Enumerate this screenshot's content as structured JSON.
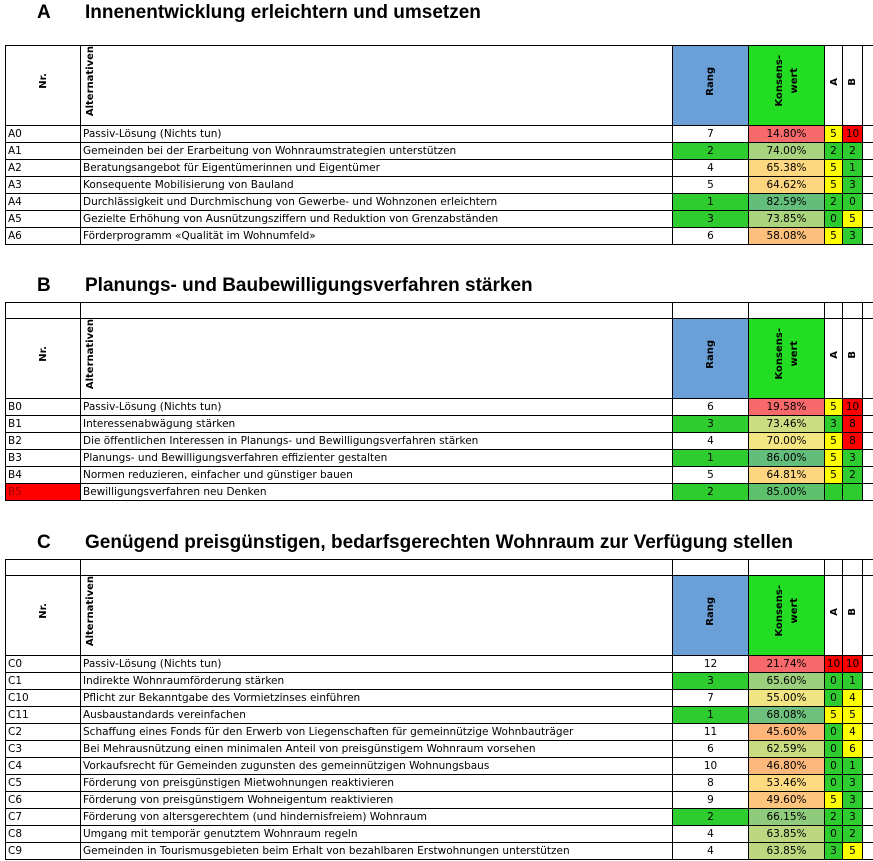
{
  "sections": [
    {
      "letter": "A",
      "title": "Innenentwicklung erleichtern und umsetzen",
      "blank_row": false,
      "headers": {
        "nr": "Nr.",
        "alt": "Alternativen",
        "rang": "Rang",
        "konsens": "Konsens-\nwert",
        "a": "A",
        "b": "B"
      },
      "header_fills": {
        "rang": "#6a9fd8",
        "konsens": "#22dd22"
      },
      "rows": [
        {
          "nr": "A0",
          "text": "Passiv-Lösung (Nichts tun)",
          "rang": 7,
          "konsens": "14.80%",
          "a": 5,
          "b": 10,
          "konsens_fill": "#f8696b",
          "a_fill": "#ffff00",
          "b_fill": "#ff0000"
        },
        {
          "nr": "A1",
          "text": "Gemeinden bei der Erarbeitung von Wohnraumstrategien unterstützen",
          "rang": 2,
          "konsens": "74.00%",
          "a": 2,
          "b": 2,
          "rang_fill": "#2fcc2f",
          "konsens_fill": "#a9d47f",
          "a_fill": "#2fcc2f",
          "b_fill": "#2fcc2f"
        },
        {
          "nr": "A2",
          "text": "Beratungsangebot für Eigentümerinnen und Eigentümer",
          "rang": 4,
          "konsens": "65.38%",
          "a": 5,
          "b": 1,
          "konsens_fill": "#fed880",
          "a_fill": "#ffff00",
          "b_fill": "#2fcc2f"
        },
        {
          "nr": "A3",
          "text": "Konsequente Mobilisierung von Bauland",
          "rang": 5,
          "konsens": "64.62%",
          "a": 5,
          "b": 3,
          "konsens_fill": "#fed680",
          "a_fill": "#ffff00",
          "b_fill": "#2fcc2f"
        },
        {
          "nr": "A4",
          "text": "Durchlässigkeit und Durchmischung von Gewerbe- und Wohnzonen erleichtern",
          "rang": 1,
          "konsens": "82.59%",
          "a": 2,
          "b": 0,
          "rang_fill": "#2fcc2f",
          "konsens_fill": "#63be7b",
          "a_fill": "#2fcc2f",
          "b_fill": "#2fcc2f"
        },
        {
          "nr": "A5",
          "text": "Gezielte Erhöhung von Ausnützungsziffern und Reduktion von Grenzabständen",
          "rang": 3,
          "konsens": "73.85%",
          "a": 0,
          "b": 5,
          "rang_fill": "#2fcc2f",
          "konsens_fill": "#abd47f",
          "a_fill": "#2fcc2f",
          "b_fill": "#ffff00"
        },
        {
          "nr": "A6",
          "text": "Förderprogramm «Qualität im Wohnumfeld»",
          "rang": 6,
          "konsens": "58.08%",
          "a": 5,
          "b": 3,
          "konsens_fill": "#fdc07c",
          "a_fill": "#ffff00",
          "b_fill": "#2fcc2f"
        }
      ]
    },
    {
      "letter": "B",
      "title": "Planungs- und Baubewilligungsverfahren stärken",
      "blank_row": true,
      "headers": {
        "nr": "Nr.",
        "alt": "Alternativen",
        "rang": "Rang",
        "konsens": "Konsens-\nwert",
        "a": "A",
        "b": "B"
      },
      "header_fills": {
        "rang": "#6a9fd8",
        "konsens": "#22dd22"
      },
      "rows": [
        {
          "nr": "B0",
          "text": "Passiv-Lösung (Nichts tun)",
          "rang": 6,
          "konsens": "19.58%",
          "a": 5,
          "b": 10,
          "konsens_fill": "#f8696b",
          "a_fill": "#ffff00",
          "b_fill": "#ff0000"
        },
        {
          "nr": "B1",
          "text": "Interessenabwägung stärken",
          "rang": 3,
          "konsens": "73.46%",
          "a": 3,
          "b": 8,
          "rang_fill": "#2fcc2f",
          "konsens_fill": "#cbdc81",
          "a_fill": "#2fcc2f",
          "b_fill": "#ff0000"
        },
        {
          "nr": "B2",
          "text": "Die öffentlichen Interessen in Planungs- und Bewilligungsverfahren stärken",
          "rang": 4,
          "konsens": "70.00%",
          "a": 5,
          "b": 8,
          "konsens_fill": "#f4e783",
          "a_fill": "#ffff00",
          "b_fill": "#ff0000"
        },
        {
          "nr": "B3",
          "text": "Planungs- und Bewilligungsverfahren effizienter gestalten",
          "rang": 1,
          "konsens": "86.00%",
          "a": 5,
          "b": 3,
          "rang_fill": "#2fcc2f",
          "konsens_fill": "#63be7b",
          "a_fill": "#ffff00",
          "b_fill": "#2fcc2f"
        },
        {
          "nr": "B4",
          "text": "Normen reduzieren, einfacher und günstiger bauen",
          "rang": 5,
          "konsens": "64.81%",
          "a": 5,
          "b": 2,
          "konsens_fill": "#fed680",
          "a_fill": "#ffff00",
          "b_fill": "#2fcc2f"
        },
        {
          "nr": "B5",
          "text": "Bewilligungsverfahren neu Denken",
          "rang": 2,
          "konsens": "85.00%",
          "a": null,
          "b": null,
          "nr_fill": "#ff0000",
          "rang_fill": "#2fcc2f",
          "konsens_fill": "#5cc06c",
          "a_fill": "#2fcc2f",
          "b_fill": "#2fcc2f"
        }
      ]
    },
    {
      "letter": "C",
      "title": "Genügend preisgünstigen, bedarfsgerechten Wohnraum zur Verfügung stellen",
      "blank_row": true,
      "headers": {
        "nr": "Nr.",
        "alt": "Alternativen",
        "rang": "Rang",
        "konsens": "Konsens-\nwert",
        "a": "A",
        "b": "B"
      },
      "header_fills": {
        "rang": "#6a9fd8",
        "konsens": "#22dd22"
      },
      "rows": [
        {
          "nr": "C0",
          "text": "Passiv-Lösung (Nichts tun)",
          "rang": 12,
          "konsens": "21.74%",
          "a": 10,
          "b": 10,
          "konsens_fill": "#f8696b",
          "a_fill": "#ff0000",
          "b_fill": "#ff0000"
        },
        {
          "nr": "C1",
          "text": "Indirekte Wohnraumförderung stärken",
          "rang": 3,
          "konsens": "65.60%",
          "a": 0,
          "b": 1,
          "rang_fill": "#2fcc2f",
          "konsens_fill": "#9ccf7e",
          "a_fill": "#2fcc2f",
          "b_fill": "#2fcc2f"
        },
        {
          "nr": "C10",
          "text": "Pflicht zur Bekanntgabe des Vormietzinses einführen",
          "rang": 7,
          "konsens": "55.00%",
          "a": 0,
          "b": 4,
          "konsens_fill": "#f1e482",
          "a_fill": "#2fcc2f",
          "b_fill": "#ffff00"
        },
        {
          "nr": "C11",
          "text": "Ausbaustandards vereinfachen",
          "rang": 1,
          "konsens": "68.08%",
          "a": 5,
          "b": 5,
          "rang_fill": "#2fcc2f",
          "konsens_fill": "#6ec17c",
          "a_fill": "#ffff00",
          "b_fill": "#ffff00"
        },
        {
          "nr": "C2",
          "text": "Schaffung eines Fonds für den Erwerb von Liegenschaften für gemeinnützige Wohnbauträger",
          "rang": 11,
          "konsens": "45.60%",
          "a": 0,
          "b": 4,
          "konsens_fill": "#fdb57a",
          "a_fill": "#2fcc2f",
          "b_fill": "#ffff00"
        },
        {
          "nr": "C3",
          "text": "Bei Mehrausnützung einen minimalen Anteil von preisgünstigem Wohnraum vorsehen",
          "rang": 6,
          "konsens": "62.59%",
          "a": 0,
          "b": 6,
          "konsens_fill": "#c9db80",
          "a_fill": "#2fcc2f",
          "b_fill": "#ffff00"
        },
        {
          "nr": "C4",
          "text": "Vorkaufsrecht für Gemeinden zugunsten des gemeinnützigen Wohnungsbaus",
          "rang": 10,
          "konsens": "46.80%",
          "a": 0,
          "b": 1,
          "konsens_fill": "#fdb97b",
          "a_fill": "#2fcc2f",
          "b_fill": "#2fcc2f"
        },
        {
          "nr": "C5",
          "text": "Förderung von preisgünstigen Mietwohnungen reaktivieren",
          "rang": 8,
          "konsens": "53.46%",
          "a": 0,
          "b": 3,
          "konsens_fill": "#fedb81",
          "a_fill": "#2fcc2f",
          "b_fill": "#2fcc2f"
        },
        {
          "nr": "C6",
          "text": "Förderung von preisgünstigem Wohneigentum reaktivieren",
          "rang": 9,
          "konsens": "49.60%",
          "a": 5,
          "b": 3,
          "konsens_fill": "#fdc47d",
          "a_fill": "#ffff00",
          "b_fill": "#2fcc2f"
        },
        {
          "nr": "C7",
          "text": "Förderung von altersgerechtem (und hindernisfreiem) Wohnraum",
          "rang": 2,
          "konsens": "66.15%",
          "a": 2,
          "b": 3,
          "rang_fill": "#2fcc2f",
          "konsens_fill": "#8fcb7d",
          "a_fill": "#2fcc2f",
          "b_fill": "#2fcc2f"
        },
        {
          "nr": "C8",
          "text": "Umgang mit temporär genutztem Wohnraum regeln",
          "rang": 4,
          "konsens": "63.85%",
          "a": 0,
          "b": 2,
          "konsens_fill": "#bcd780",
          "a_fill": "#2fcc2f",
          "b_fill": "#2fcc2f"
        },
        {
          "nr": "C9",
          "text": "Gemeinden in Tourismusgebieten beim Erhalt von bezahlbaren Erstwohnungen unterstützen",
          "rang": 4,
          "konsens": "63.85%",
          "a": 3,
          "b": 5,
          "konsens_fill": "#bcd780",
          "a_fill": "#2fcc2f",
          "b_fill": "#ffff00"
        }
      ]
    }
  ]
}
